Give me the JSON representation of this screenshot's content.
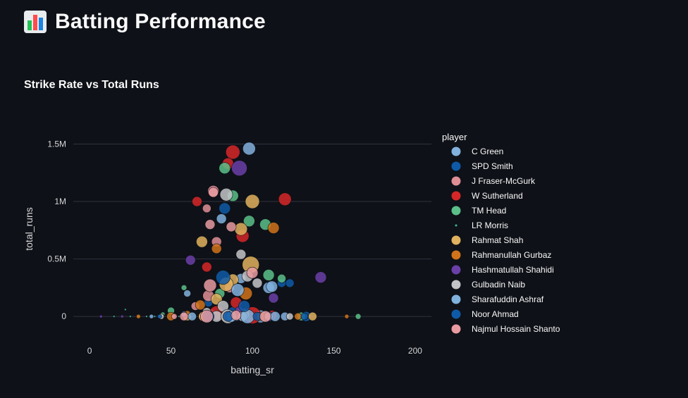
{
  "header": {
    "title": "Batting Performance",
    "icon": "bar-chart-icon"
  },
  "chart_data": {
    "type": "scatter",
    "title": "Strike Rate vs Total Runs",
    "xlabel": "batting_sr",
    "ylabel": "total_runs",
    "xlim": [
      -10,
      210
    ],
    "ylim": [
      -250000,
      1650000
    ],
    "xticks": [
      0,
      50,
      100,
      150,
      200
    ],
    "xtick_labels": [
      "0",
      "50",
      "100",
      "150",
      "200"
    ],
    "yticks": [
      0,
      500000,
      1000000,
      1500000
    ],
    "ytick_labels": [
      "0",
      "0.5M",
      "1M",
      "1.5M"
    ],
    "grid": true,
    "legend_title": "player",
    "legend_position": "right",
    "series": [
      {
        "name": "C Green",
        "color": "#83b1de",
        "points": [
          [
            98,
            1460000,
            9
          ],
          [
            110,
            250000,
            8
          ],
          [
            93,
            330000,
            7
          ],
          [
            60,
            200000,
            5
          ],
          [
            75,
            20000,
            7
          ],
          [
            90,
            10000,
            8
          ],
          [
            105,
            0,
            9
          ],
          [
            120,
            0,
            6
          ]
        ]
      },
      {
        "name": "SPD Smith",
        "color": "#0e5aa8",
        "points": [
          [
            83,
            940000,
            8
          ],
          [
            118,
            290000,
            6
          ],
          [
            73,
            120000,
            6
          ],
          [
            88,
            40000,
            7
          ],
          [
            95,
            10000,
            7
          ],
          [
            100,
            0,
            6
          ],
          [
            133,
            0,
            7
          ],
          [
            80,
            0,
            6
          ]
        ]
      },
      {
        "name": "J Fraser-McGurk",
        "color": "#e08e95",
        "points": [
          [
            76,
            1090000,
            8
          ],
          [
            72,
            940000,
            6
          ],
          [
            78,
            650000,
            7
          ],
          [
            73,
            180000,
            8
          ],
          [
            86,
            250000,
            7
          ],
          [
            65,
            90000,
            6
          ],
          [
            70,
            0,
            7
          ],
          [
            92,
            20000,
            8
          ]
        ]
      },
      {
        "name": "W Sutherland",
        "color": "#d62728",
        "points": [
          [
            88,
            1430000,
            10
          ],
          [
            85,
            1330000,
            8
          ],
          [
            66,
            1000000,
            7
          ],
          [
            120,
            1020000,
            9
          ],
          [
            94,
            700000,
            9
          ],
          [
            72,
            430000,
            7
          ],
          [
            90,
            120000,
            8
          ],
          [
            100,
            10000,
            12
          ],
          [
            78,
            30000,
            10
          ],
          [
            112,
            10000,
            7
          ]
        ]
      },
      {
        "name": "TM Head",
        "color": "#5abf88",
        "points": [
          [
            83,
            1290000,
            8
          ],
          [
            88,
            1050000,
            8
          ],
          [
            98,
            830000,
            8
          ],
          [
            108,
            800000,
            8
          ],
          [
            110,
            360000,
            8
          ],
          [
            118,
            330000,
            6
          ],
          [
            80,
            200000,
            7
          ],
          [
            58,
            250000,
            4
          ],
          [
            50,
            50000,
            5
          ],
          [
            165,
            0,
            4
          ],
          [
            130,
            0,
            6
          ],
          [
            45,
            20000,
            3
          ]
        ]
      },
      {
        "name": "LR Morris",
        "color": "#3cb89e",
        "points": [
          [
            22,
            60000,
            1.5
          ],
          [
            40,
            0,
            1.5
          ],
          [
            30,
            0,
            1.5
          ],
          [
            55,
            0,
            1.5
          ],
          [
            15,
            0,
            1.5
          ],
          [
            35,
            0,
            1.5
          ],
          [
            45,
            10000,
            1.5
          ],
          [
            25,
            0,
            1.5
          ]
        ]
      },
      {
        "name": "Rahmat Shah",
        "color": "#e0b15e",
        "points": [
          [
            100,
            1000000,
            10
          ],
          [
            93,
            760000,
            9
          ],
          [
            69,
            650000,
            8
          ],
          [
            99,
            450000,
            12
          ],
          [
            88,
            320000,
            8
          ],
          [
            84,
            280000,
            10
          ],
          [
            78,
            150000,
            8
          ],
          [
            60,
            0,
            6
          ],
          [
            70,
            0,
            7
          ],
          [
            137,
            0,
            6
          ],
          [
            95,
            20000,
            8
          ]
        ]
      },
      {
        "name": "Rahmanullah Gurbaz",
        "color": "#d0731a",
        "points": [
          [
            113,
            770000,
            8
          ],
          [
            78,
            590000,
            7
          ],
          [
            96,
            200000,
            9
          ],
          [
            68,
            100000,
            7
          ],
          [
            50,
            0,
            6
          ],
          [
            60,
            20000,
            5
          ],
          [
            83,
            0,
            7
          ],
          [
            105,
            0,
            6
          ],
          [
            128,
            0,
            5
          ],
          [
            158,
            0,
            3
          ],
          [
            30,
            0,
            3
          ]
        ]
      },
      {
        "name": "Hashmatullah Shahidi",
        "color": "#6a3fa8",
        "points": [
          [
            92,
            1290000,
            11
          ],
          [
            62,
            490000,
            7
          ],
          [
            142,
            340000,
            8
          ],
          [
            113,
            160000,
            7
          ],
          [
            110,
            0,
            7
          ],
          [
            7,
            0,
            2
          ],
          [
            20,
            0,
            2
          ],
          [
            75,
            0,
            6
          ],
          [
            92,
            50000,
            6
          ]
        ]
      },
      {
        "name": "Gulbadin Naib",
        "color": "#c3c4c8",
        "points": [
          [
            84,
            1060000,
            9
          ],
          [
            93,
            540000,
            7
          ],
          [
            97,
            350000,
            8
          ],
          [
            103,
            290000,
            7
          ],
          [
            82,
            90000,
            8
          ],
          [
            72,
            40000,
            6
          ],
          [
            78,
            0,
            8
          ],
          [
            85,
            0,
            10
          ],
          [
            94,
            0,
            7
          ],
          [
            110,
            0,
            6
          ],
          [
            123,
            0,
            5
          ],
          [
            44,
            0,
            4
          ]
        ]
      },
      {
        "name": "Sharafuddin Ashraf",
        "color": "#80b2de",
        "points": [
          [
            81,
            850000,
            7
          ],
          [
            112,
            260000,
            8
          ],
          [
            91,
            230000,
            9
          ],
          [
            63,
            0,
            6
          ],
          [
            87,
            0,
            8
          ],
          [
            97,
            0,
            10
          ],
          [
            114,
            0,
            7
          ],
          [
            38,
            0,
            3
          ],
          [
            58,
            20000,
            4
          ]
        ]
      },
      {
        "name": "Noor Ahmad",
        "color": "#0e5aa8",
        "points": [
          [
            82,
            340000,
            10
          ],
          [
            123,
            290000,
            6
          ],
          [
            95,
            90000,
            8
          ],
          [
            73,
            0,
            8
          ],
          [
            85,
            0,
            7
          ],
          [
            103,
            0,
            6
          ],
          [
            43,
            0,
            3
          ],
          [
            132,
            0,
            5
          ]
        ]
      },
      {
        "name": "Najmul Hossain Shanto",
        "color": "#e89ba0",
        "points": [
          [
            76,
            1080000,
            7
          ],
          [
            74,
            800000,
            7
          ],
          [
            87,
            780000,
            7
          ],
          [
            74,
            270000,
            9
          ],
          [
            100,
            380000,
            8
          ],
          [
            58,
            0,
            6
          ],
          [
            72,
            0,
            9
          ],
          [
            90,
            10000,
            7
          ],
          [
            108,
            0,
            8
          ],
          [
            52,
            0,
            4
          ]
        ]
      }
    ]
  }
}
